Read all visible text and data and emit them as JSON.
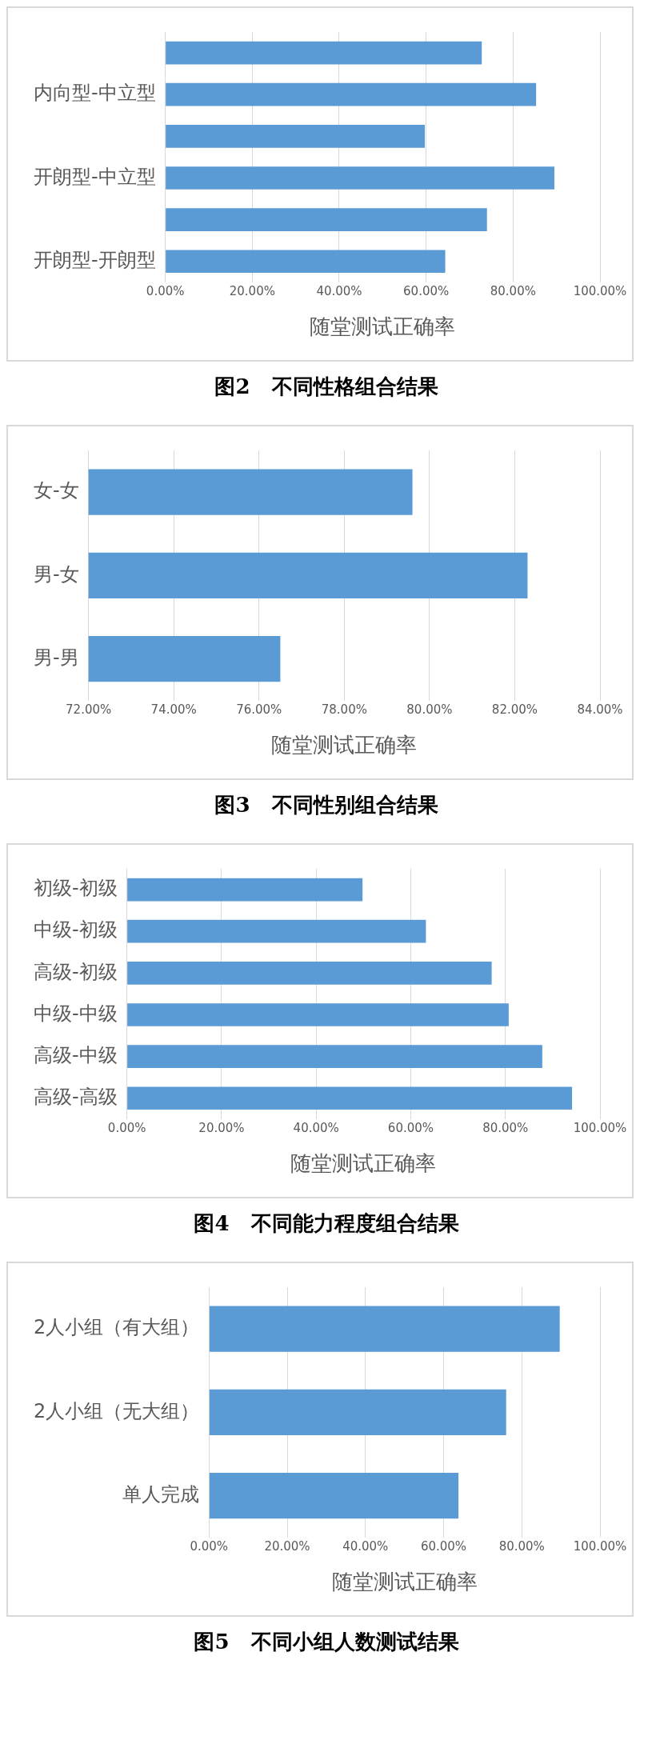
{
  "chart_data": [
    {
      "type": "bar",
      "orientation": "horizontal",
      "title": "图2   不同性格组合结果",
      "xlabel": "随堂测试正确率",
      "categories": [
        null,
        "内向型-中立型",
        null,
        "开朗型-中立型",
        null,
        "开朗型-开朗型"
      ],
      "values": [
        72.8,
        85.3,
        59.7,
        89.5,
        74.0,
        64.4
      ],
      "color": "#5b9bd5",
      "xlim": [
        0,
        100
      ],
      "xticks": [
        {
          "value": 0,
          "label": "0.00%"
        },
        {
          "value": 20,
          "label": "20.00%"
        },
        {
          "value": 40,
          "label": "40.00%"
        },
        {
          "value": 60,
          "label": "60.00%"
        },
        {
          "value": 80,
          "label": "80.00%"
        },
        {
          "value": 100,
          "label": "100.00%"
        }
      ],
      "grid": "x"
    },
    {
      "type": "bar",
      "orientation": "horizontal",
      "title": "图3   不同性别组合结果",
      "xlabel": "随堂测试正确率",
      "categories": [
        "女-女",
        "男-女",
        "男-男"
      ],
      "values": [
        79.6,
        82.3,
        76.5
      ],
      "color": "#5b9bd5",
      "xlim": [
        72,
        84
      ],
      "xticks": [
        {
          "value": 72,
          "label": "72.00%"
        },
        {
          "value": 74,
          "label": "74.00%"
        },
        {
          "value": 76,
          "label": "76.00%"
        },
        {
          "value": 78,
          "label": "78.00%"
        },
        {
          "value": 80,
          "label": "80.00%"
        },
        {
          "value": 82,
          "label": "82.00%"
        },
        {
          "value": 84,
          "label": "84.00%"
        }
      ],
      "grid": "x"
    },
    {
      "type": "bar",
      "orientation": "horizontal",
      "title": "图4   不同能力程度组合结果",
      "xlabel": "随堂测试正确率",
      "categories": [
        "初级-初级",
        "中级-初级",
        "高级-初级",
        "中级-中级",
        "高级-中级",
        "高级-高级"
      ],
      "values": [
        49.8,
        63.2,
        77.1,
        80.7,
        87.8,
        94.1
      ],
      "color": "#5b9bd5",
      "xlim": [
        0,
        100
      ],
      "xticks": [
        {
          "value": 0,
          "label": "0.00%"
        },
        {
          "value": 20,
          "label": "20.00%"
        },
        {
          "value": 40,
          "label": "40.00%"
        },
        {
          "value": 60,
          "label": "60.00%"
        },
        {
          "value": 80,
          "label": "80.00%"
        },
        {
          "value": 100,
          "label": "100.00%"
        }
      ],
      "grid": "x"
    },
    {
      "type": "bar",
      "orientation": "horizontal",
      "title": "图5   不同小组人数测试结果",
      "xlabel": "随堂测试正确率",
      "categories": [
        "2人小组（有大组）",
        "2人小组（无大组）",
        "单人完成"
      ],
      "values": [
        89.7,
        76.0,
        63.8
      ],
      "color": "#5b9bd5",
      "xlim": [
        0,
        100
      ],
      "xticks": [
        {
          "value": 0,
          "label": "0.00%"
        },
        {
          "value": 20,
          "label": "20.00%"
        },
        {
          "value": 40,
          "label": "40.00%"
        },
        {
          "value": 60,
          "label": "60.00%"
        },
        {
          "value": 80,
          "label": "80.00%"
        },
        {
          "value": 100,
          "label": "100.00%"
        }
      ],
      "grid": "x"
    }
  ]
}
